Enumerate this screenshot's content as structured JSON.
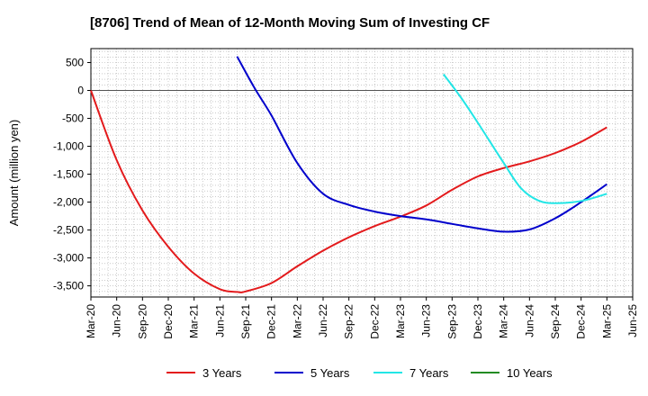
{
  "chart_data": {
    "type": "line",
    "title": "[8706]  Trend of Mean of 12-Month Moving Sum of Investing CF",
    "ylabel": "Amount (million yen)",
    "xlabel": "",
    "x_ticks": [
      "Mar-20",
      "Jun-20",
      "Sep-20",
      "Dec-20",
      "Mar-21",
      "Jun-21",
      "Sep-21",
      "Dec-21",
      "Mar-22",
      "Jun-22",
      "Sep-22",
      "Dec-22",
      "Mar-23",
      "Jun-23",
      "Sep-23",
      "Dec-23",
      "Mar-24",
      "Jun-24",
      "Sep-24",
      "Dec-24",
      "Mar-25",
      "Jun-25"
    ],
    "y_ticks": [
      500,
      0,
      -500,
      -1000,
      -1500,
      -2000,
      -2500,
      -3000,
      -3500
    ],
    "y_tick_labels": [
      "500",
      "0",
      "-500",
      "-1,000",
      "-1,500",
      "-2,000",
      "-2,500",
      "-3,000",
      "-3,500"
    ],
    "ylim": [
      -3700,
      750
    ],
    "grid": true,
    "legend_position": "bottom",
    "series": [
      {
        "name": "3 Years",
        "color": "#e31a1c",
        "points": [
          [
            "Mar-20",
            0
          ],
          [
            "Jun-20",
            -1250
          ],
          [
            "Sep-20",
            -2150
          ],
          [
            "Dec-20",
            -2800
          ],
          [
            "Mar-21",
            -3280
          ],
          [
            "Jun-21",
            -3560
          ],
          [
            "Aug-21",
            -3610
          ],
          [
            "Sep-21",
            -3600
          ],
          [
            "Dec-21",
            -3450
          ],
          [
            "Mar-22",
            -3150
          ],
          [
            "Jun-22",
            -2870
          ],
          [
            "Sep-22",
            -2630
          ],
          [
            "Dec-22",
            -2430
          ],
          [
            "Mar-23",
            -2260
          ],
          [
            "Jun-23",
            -2060
          ],
          [
            "Sep-23",
            -1780
          ],
          [
            "Dec-23",
            -1540
          ],
          [
            "Mar-24",
            -1390
          ],
          [
            "Jun-24",
            -1270
          ],
          [
            "Sep-24",
            -1120
          ],
          [
            "Dec-24",
            -920
          ],
          [
            "Mar-25",
            -660
          ]
        ]
      },
      {
        "name": "5 Years",
        "color": "#0000cc",
        "points": [
          [
            "Aug-21",
            610
          ],
          [
            "Oct-21",
            50
          ],
          [
            "Dec-21",
            -450
          ],
          [
            "Mar-22",
            -1300
          ],
          [
            "Jun-22",
            -1850
          ],
          [
            "Sep-22",
            -2050
          ],
          [
            "Dec-22",
            -2170
          ],
          [
            "Mar-23",
            -2250
          ],
          [
            "Jun-23",
            -2310
          ],
          [
            "Sep-23",
            -2390
          ],
          [
            "Dec-23",
            -2470
          ],
          [
            "Mar-24",
            -2530
          ],
          [
            "Jun-24",
            -2490
          ],
          [
            "Sep-24",
            -2290
          ],
          [
            "Dec-24",
            -2000
          ],
          [
            "Mar-25",
            -1680
          ]
        ]
      },
      {
        "name": "7 Years",
        "color": "#22e6e6",
        "points": [
          [
            "Aug-23",
            290
          ],
          [
            "Oct-23",
            -120
          ],
          [
            "Dec-23",
            -580
          ],
          [
            "Mar-24",
            -1300
          ],
          [
            "May-24",
            -1750
          ],
          [
            "Jul-24",
            -1970
          ],
          [
            "Sep-24",
            -2020
          ],
          [
            "Dec-24",
            -1980
          ],
          [
            "Mar-25",
            -1850
          ]
        ]
      },
      {
        "name": "10 Years",
        "color": "#228b22",
        "points": []
      }
    ]
  }
}
